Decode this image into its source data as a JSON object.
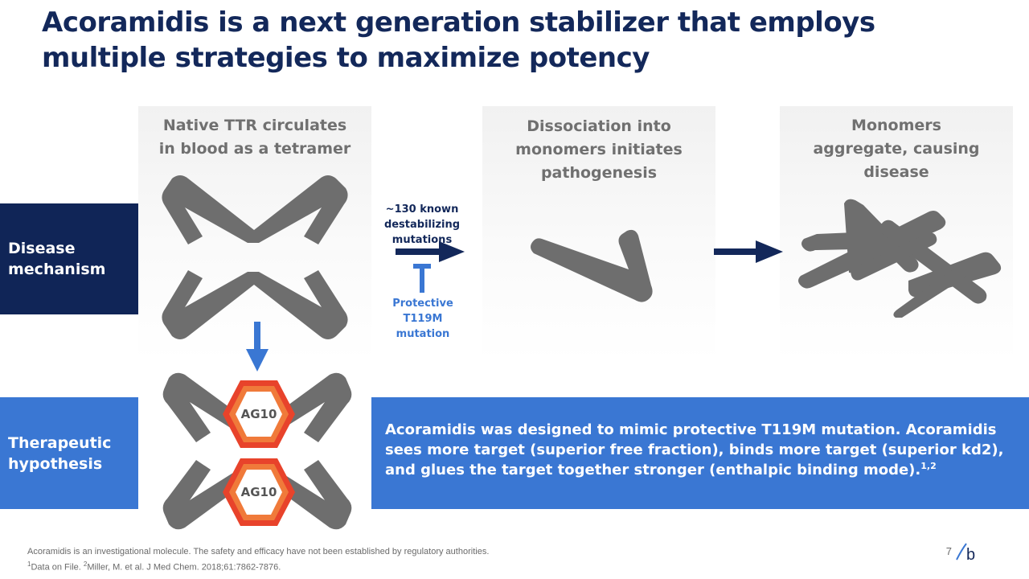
{
  "slide": {
    "title": "Acoramidis is a next generation stabilizer that employs multiple strategies to maximize potency",
    "page_number": "7",
    "logo_letter": "b"
  },
  "row_labels": {
    "disease": "Disease mechanism",
    "therapeutic": "Therapeutic hypothesis"
  },
  "panels": [
    {
      "title": "Native TTR circulates in blood as a tetramer"
    },
    {
      "title": "Dissociation into monomers initiates pathogenesis"
    },
    {
      "title": "Monomers aggregate, causing disease"
    }
  ],
  "arrow_labels": {
    "mutations": "~130 known destabilizing mutations",
    "protective": "Protective T119M mutation"
  },
  "drug_badges": [
    "AG10",
    "AG10"
  ],
  "hypothesis": {
    "text": "Acoramidis was designed to mimic protective T119M mutation. Acoramidis sees more target (superior free fraction), binds more target (superior kd2), and glues the target together stronger (enthalpic binding mode).",
    "refs": "1,2"
  },
  "footnotes": {
    "disclaimer": "Acoramidis is an investigational molecule. The safety and efficacy have not been established by regulatory authorities.",
    "ref1_num": "1",
    "ref1": "Data on File.",
    "ref2_num": "2",
    "ref2": "Miller, M. et al. J Med Chem. 2018;61:7862-7876."
  },
  "colors": {
    "navy": "#13285a",
    "dark_label_bg": "#102557",
    "blue": "#3a77d3",
    "gray_shape": "#6e6e6e",
    "badge_red": "#e8432b",
    "badge_orange": "#f07a3a"
  }
}
